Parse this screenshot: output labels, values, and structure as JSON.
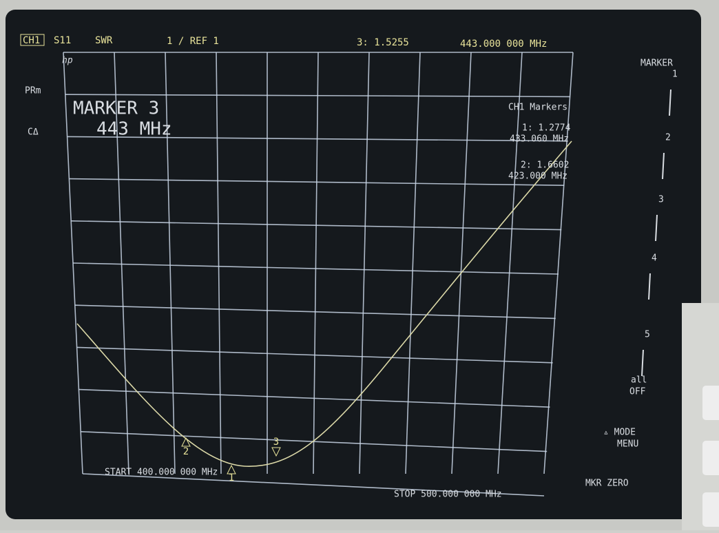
{
  "header": {
    "channel": "CH1",
    "parameter": "S11",
    "format": "SWR",
    "scale": "1 / REF 1",
    "active_marker": "3: 1.5255",
    "active_freq": "443.000 000 MHz"
  },
  "left_labels": {
    "logo": "hp",
    "prm": "PRm",
    "ca": "CΔ"
  },
  "marker_box": {
    "title": "MARKER 3",
    "freq": "443 MHz"
  },
  "marker_list": {
    "title": "CH1 Markers",
    "m1_value": "1: 1.2774",
    "m1_freq": "433.060 MHz",
    "m2_value": "2: 1.6602",
    "m2_freq": "423.000 MHz"
  },
  "trace_markers": [
    "1",
    "2",
    "3"
  ],
  "footer": {
    "start": "START 400.000 000 MHz",
    "stop": "STOP 500.000 000 MHz"
  },
  "softkeys": {
    "title": "MARKER",
    "keys": [
      "1",
      "2",
      "3",
      "4",
      "5"
    ],
    "all": "all",
    "off": "OFF",
    "mode": "▵ MODE",
    "menu": "MENU",
    "zero": "MKR ZERO"
  }
}
